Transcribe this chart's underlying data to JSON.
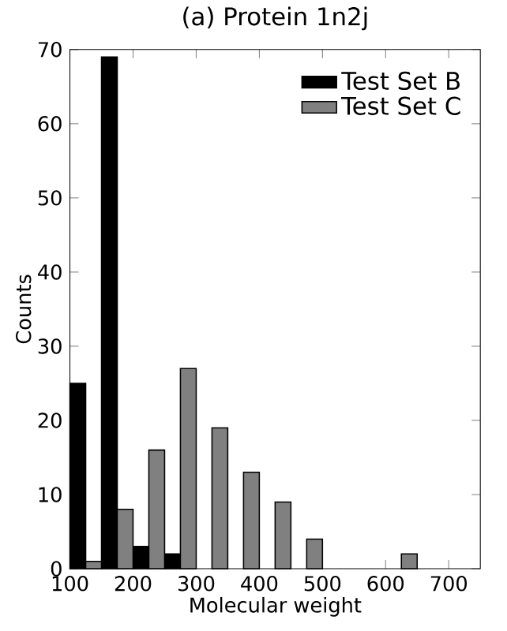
{
  "chart_data": {
    "type": "histogram",
    "title": "(a) Protein 1n2j",
    "xlabel": "Molecular weight",
    "ylabel": "Counts",
    "bins": [
      100,
      150,
      200,
      250,
      300,
      350,
      400,
      450,
      500,
      550,
      600,
      650
    ],
    "series": [
      {
        "name": "Test Set B",
        "color": "#000000",
        "values": [
          25,
          69,
          3,
          2,
          0,
          0,
          0,
          0,
          0,
          0,
          0
        ]
      },
      {
        "name": "Test Set C",
        "color": "#808080",
        "values": [
          1,
          8,
          16,
          27,
          19,
          13,
          9,
          4,
          0,
          0,
          2
        ]
      }
    ],
    "xlim": [
      100,
      750
    ],
    "xticks": [
      100,
      200,
      300,
      400,
      500,
      600,
      700
    ],
    "ylim": [
      0,
      70
    ],
    "yticks": [
      0,
      10,
      20,
      30,
      40,
      50,
      60,
      70
    ],
    "legend": "top right",
    "grid": false
  }
}
